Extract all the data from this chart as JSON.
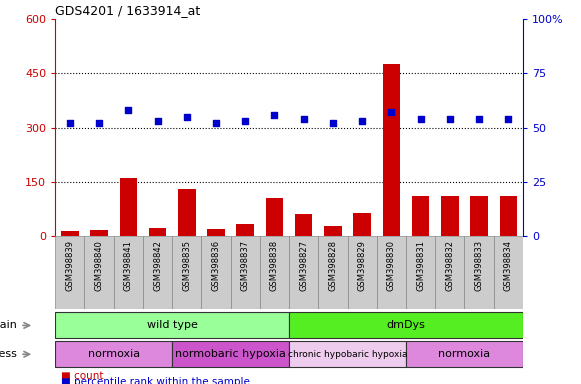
{
  "title": "GDS4201 / 1633914_at",
  "samples": [
    "GSM398839",
    "GSM398840",
    "GSM398841",
    "GSM398842",
    "GSM398835",
    "GSM398836",
    "GSM398837",
    "GSM398838",
    "GSM398827",
    "GSM398828",
    "GSM398829",
    "GSM398830",
    "GSM398831",
    "GSM398832",
    "GSM398833",
    "GSM398834"
  ],
  "counts": [
    15,
    18,
    160,
    22,
    130,
    20,
    35,
    105,
    60,
    28,
    65,
    475,
    110,
    110,
    110,
    110
  ],
  "percentiles": [
    52,
    52,
    58,
    53,
    55,
    52,
    53,
    56,
    54,
    52,
    53,
    57,
    54,
    54,
    54,
    54
  ],
  "bar_color": "#cc0000",
  "dot_color": "#0000cc",
  "ylim_left": [
    0,
    600
  ],
  "ylim_right": [
    0,
    100
  ],
  "yticks_left": [
    0,
    150,
    300,
    450,
    600
  ],
  "yticks_right": [
    0,
    25,
    50,
    75,
    100
  ],
  "strain_groups": [
    {
      "label": "wild type",
      "start": 0,
      "end": 8,
      "color": "#99ff99"
    },
    {
      "label": "dmDys",
      "start": 8,
      "end": 16,
      "color": "#55ee22"
    }
  ],
  "stress_groups": [
    {
      "label": "normoxia",
      "start": 0,
      "end": 4,
      "color": "#dd88dd"
    },
    {
      "label": "normobaric hypoxia",
      "start": 4,
      "end": 8,
      "color": "#cc55cc"
    },
    {
      "label": "chronic hypobaric hypoxia",
      "start": 8,
      "end": 12,
      "color": "#eeccee"
    },
    {
      "label": "normoxia",
      "start": 12,
      "end": 16,
      "color": "#dd88dd"
    }
  ],
  "bg_color": "#ffffff",
  "xtick_bg_color": "#cccccc",
  "grid_line_color": "#000000"
}
